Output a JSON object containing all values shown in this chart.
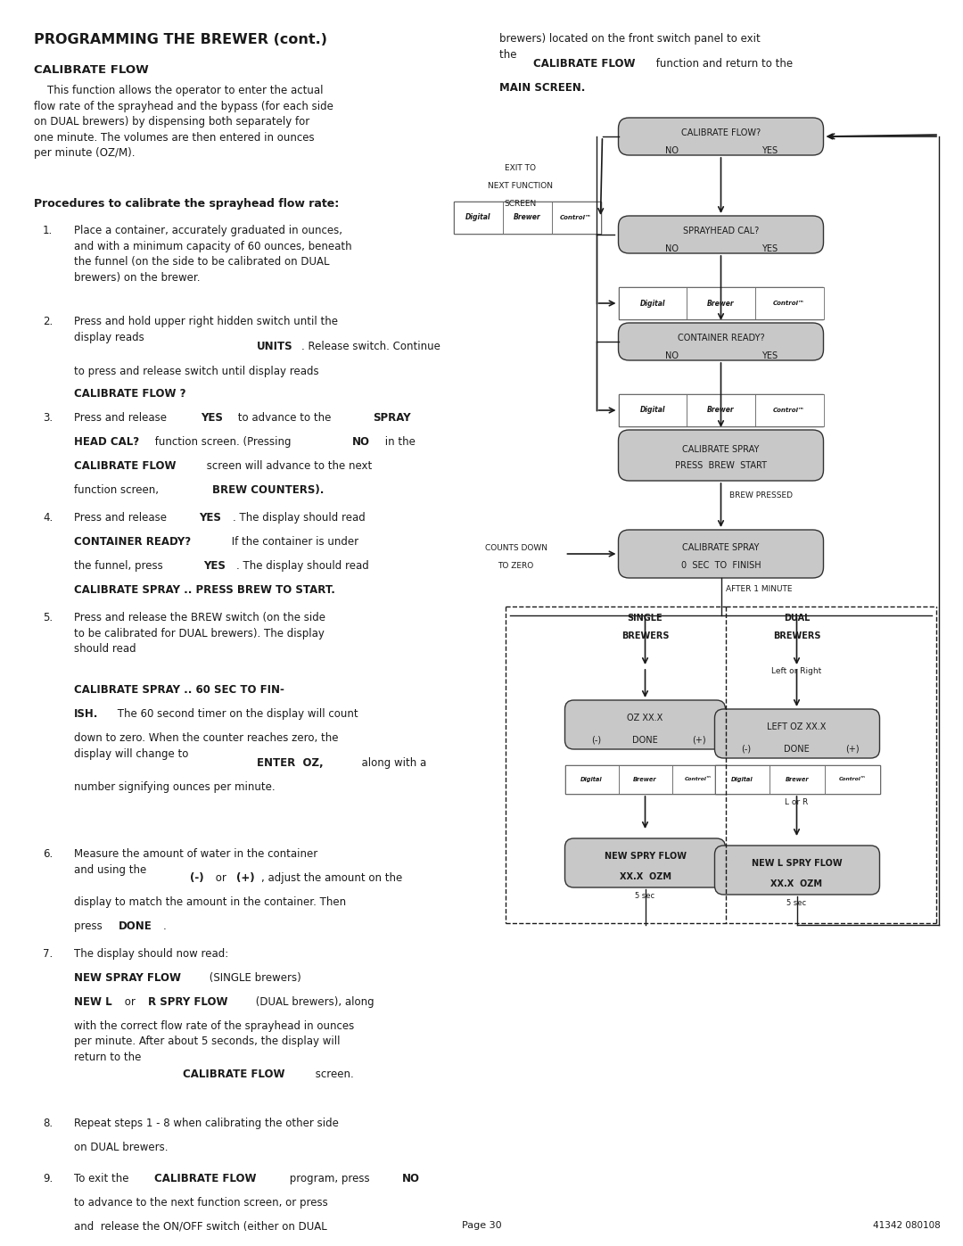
{
  "title": "PROGRAMMING THE BREWER (cont.)",
  "bg_color": "#ffffff",
  "text_color": "#1a1a1a",
  "box_fill": "#cccccc",
  "box_fill_display": "#d8d8d8",
  "page_num": "Page 30",
  "doc_num": "41342 080108"
}
